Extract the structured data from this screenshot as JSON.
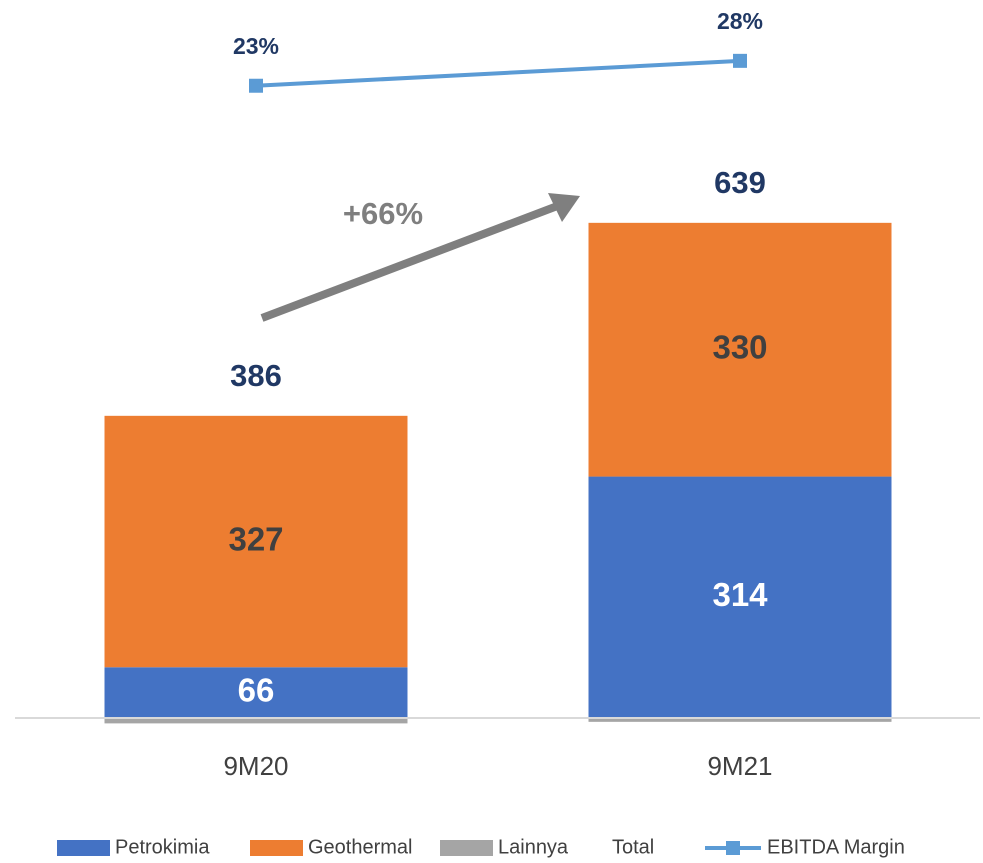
{
  "chart_data": {
    "type": "bar",
    "stacked": true,
    "categories": [
      "9M20",
      "9M21"
    ],
    "series": [
      {
        "name": "Petrokimia",
        "color": "#4472c4",
        "values": [
          66,
          314
        ],
        "label_color": "#ffffff"
      },
      {
        "name": "Geothermal",
        "color": "#ed7d31",
        "values": [
          327,
          330
        ],
        "label_color": "#404040"
      },
      {
        "name": "Lainnya",
        "color": "#a5a5a5",
        "values": [
          -7,
          -5
        ]
      },
      {
        "name": "EBITDA Margin",
        "type": "line",
        "axis": "y2",
        "color": "#5b9bd5",
        "values": [
          23,
          28
        ],
        "value_labels": [
          "23%",
          "28%"
        ]
      }
    ],
    "total": {
      "name": "Total",
      "values": [
        386,
        639
      ]
    },
    "annotation": "+66%",
    "ylim": [
      0,
      900
    ],
    "y2lim": [
      -104,
      35
    ],
    "grid": false
  }
}
